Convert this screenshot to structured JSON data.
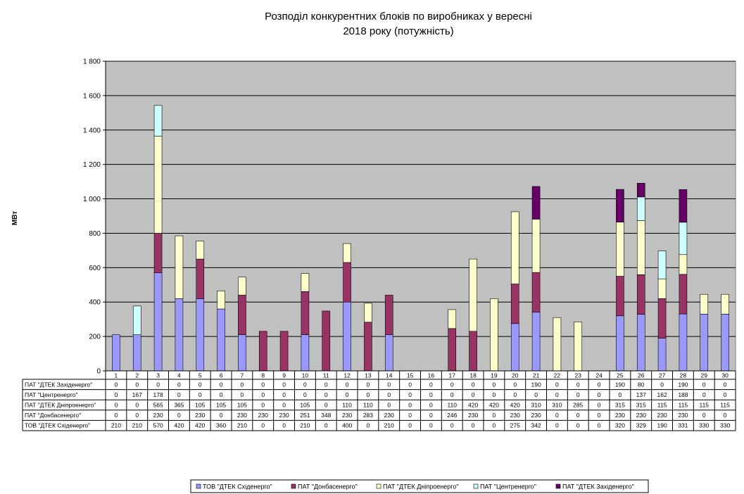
{
  "chart_data": {
    "type": "bar",
    "stacked": true,
    "title_lines": [
      "Розподіл конкурентних  блоків по виробниках  у вересні",
      "2018 року (потужність)"
    ],
    "ylabel": "МВт",
    "ylim": [
      0,
      1800
    ],
    "yticks": [
      0,
      200,
      400,
      600,
      800,
      1000,
      1200,
      1400,
      1600,
      1800
    ],
    "ytick_labels": [
      "0",
      "200",
      "400",
      "600",
      "800",
      "1 000",
      "1 200",
      "1 400",
      "1 600",
      "1 800"
    ],
    "grid": true,
    "legend_position": "bottom",
    "categories": [
      "1",
      "2",
      "3",
      "4",
      "5",
      "6",
      "7",
      "8",
      "9",
      "10",
      "11",
      "12",
      "13",
      "14",
      "15",
      "16",
      "17",
      "18",
      "19",
      "20",
      "21",
      "22",
      "23",
      "24",
      "25",
      "26",
      "27",
      "28",
      "29",
      "30"
    ],
    "series": [
      {
        "name": "ТОВ \"ДТЕК Східенерго\"",
        "color": "#9999ff",
        "values": [
          210,
          210,
          570,
          420,
          420,
          360,
          210,
          0,
          0,
          210,
          0,
          400,
          0,
          210,
          0,
          0,
          0,
          0,
          0,
          275,
          342,
          0,
          0,
          0,
          320,
          329,
          190,
          331,
          330,
          330
        ]
      },
      {
        "name": "ПАТ \"Донбасенерго\"",
        "color": "#993366",
        "values": [
          0,
          0,
          230,
          0,
          230,
          0,
          230,
          230,
          230,
          251,
          348,
          230,
          283,
          230,
          0,
          0,
          246,
          230,
          0,
          230,
          230,
          0,
          0,
          0,
          230,
          230,
          230,
          230,
          0,
          0
        ]
      },
      {
        "name": "ПАТ \"ДТЕК Дніпроенерго\"",
        "color": "#ffffcc",
        "values": [
          0,
          0,
          565,
          365,
          105,
          105,
          105,
          0,
          0,
          105,
          0,
          110,
          110,
          0,
          0,
          0,
          110,
          420,
          420,
          420,
          310,
          310,
          285,
          0,
          315,
          315,
          115,
          115,
          115,
          115
        ]
      },
      {
        "name": "ПАТ \"Центренерго\"",
        "color": "#ccffff",
        "values": [
          0,
          167,
          178,
          0,
          0,
          0,
          0,
          0,
          0,
          0,
          0,
          0,
          0,
          0,
          0,
          0,
          0,
          0,
          0,
          0,
          0,
          0,
          0,
          0,
          0,
          137,
          162,
          188,
          0,
          0
        ]
      },
      {
        "name": "ПАТ \"ДТЕК Західенерго\"",
        "color": "#660066",
        "values": [
          0,
          0,
          0,
          0,
          0,
          0,
          0,
          0,
          0,
          0,
          0,
          0,
          0,
          0,
          0,
          0,
          0,
          0,
          0,
          0,
          190,
          0,
          0,
          0,
          190,
          80,
          0,
          190,
          0,
          0
        ]
      }
    ],
    "table_row_labels": [
      "ПАТ \"ДТЕК Західенерго\"",
      "ПАТ \"Центренерго\"",
      "ПАТ \"ДТЕК Дніпроенерго\"",
      "ПАТ \"Донбасенерго\"",
      "ТОВ \"ДТЕК Східенерго\""
    ],
    "legend_labels": [
      "ТОВ \"ДТЕК Східенерго\"",
      "ПАТ \"Донбасенерго\"",
      "ПАТ \"ДТЕК Дніпроенерго\"",
      "ПАТ \"Центренерго\"",
      "ПАТ \"ДТЕК Західенерго\""
    ]
  },
  "colors": {
    "plot_background": "#c0c0c0",
    "gridline": "#000000",
    "bar_outline": "#000000"
  }
}
